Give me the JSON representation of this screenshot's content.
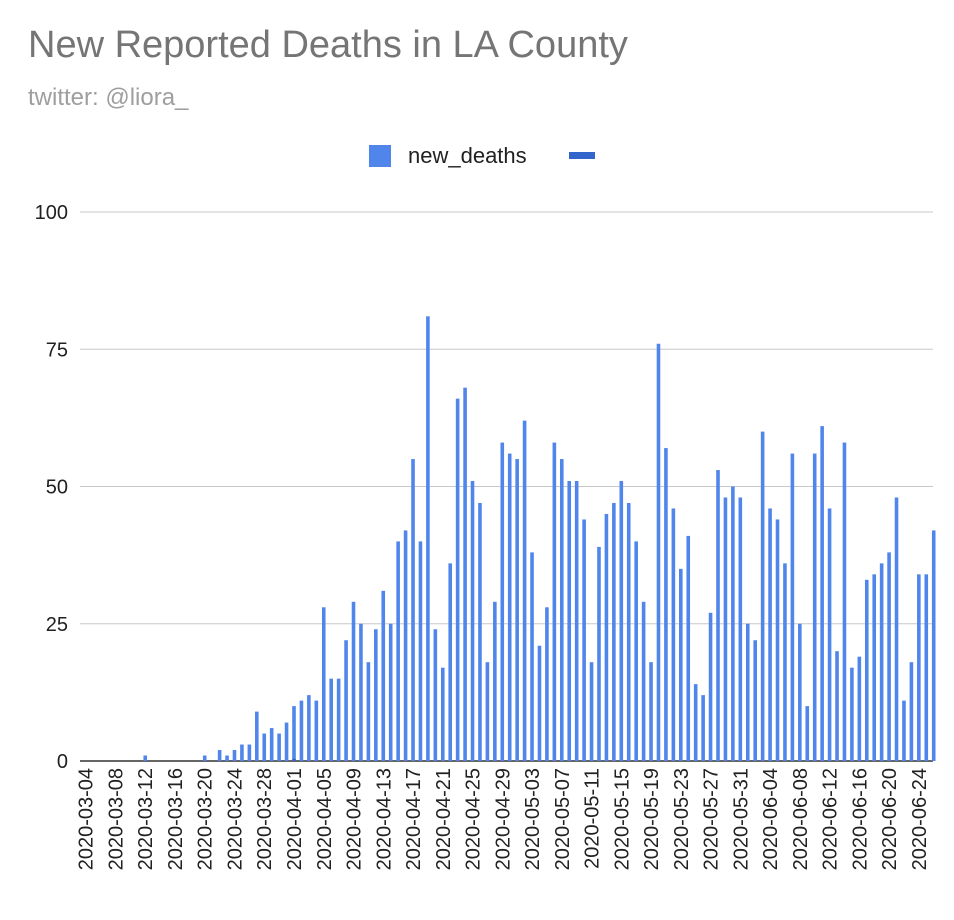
{
  "chart_data": {
    "type": "bar",
    "title": "New Reported Deaths in LA County",
    "subtitle": "twitter: @liora_",
    "legend": [
      {
        "label": "new_deaths",
        "color": "#5086ec",
        "kind": "box"
      },
      {
        "label": "",
        "color": "#3366cc",
        "kind": "line"
      }
    ],
    "legend_position": "top",
    "xlabel": "",
    "ylabel": "",
    "ylim": [
      0,
      100
    ],
    "yticks": [
      0,
      25,
      50,
      75,
      100
    ],
    "grid": true,
    "start_date": "2020-03-04",
    "x_tick_labels": [
      "2020-03-04",
      "2020-03-08",
      "2020-03-12",
      "2020-03-16",
      "2020-03-20",
      "2020-03-24",
      "2020-03-28",
      "2020-04-01",
      "2020-04-05",
      "2020-04-09",
      "2020-04-13",
      "2020-04-17",
      "2020-04-21",
      "2020-04-25",
      "2020-04-29",
      "2020-05-03",
      "2020-05-07",
      "2020-05-11",
      "2020-05-15",
      "2020-05-19",
      "2020-05-23",
      "2020-05-27",
      "2020-05-31",
      "2020-06-04",
      "2020-06-08",
      "2020-06-12",
      "2020-06-16",
      "2020-06-20",
      "2020-06-24"
    ],
    "series": [
      {
        "name": "new_deaths",
        "color": "#5086ec",
        "values": [
          0,
          0,
          0,
          0,
          0,
          0,
          0,
          0,
          1,
          0,
          0,
          0,
          0,
          0,
          0,
          0,
          1,
          0,
          2,
          1,
          2,
          3,
          3,
          9,
          5,
          6,
          5,
          7,
          10,
          11,
          12,
          11,
          28,
          15,
          15,
          22,
          29,
          25,
          18,
          24,
          31,
          25,
          40,
          42,
          55,
          40,
          81,
          24,
          17,
          36,
          66,
          68,
          51,
          47,
          18,
          29,
          58,
          56,
          55,
          62,
          38,
          21,
          28,
          58,
          55,
          51,
          51,
          44,
          18,
          39,
          45,
          47,
          51,
          47,
          40,
          29,
          18,
          76,
          57,
          46,
          35,
          41,
          14,
          12,
          27,
          53,
          48,
          50,
          48,
          25,
          22,
          60,
          46,
          44,
          36,
          56,
          25,
          10,
          56,
          61,
          46,
          20,
          58,
          17,
          19,
          33,
          34,
          36,
          38,
          48,
          11,
          18,
          34,
          34,
          42
        ]
      },
      {
        "name": "",
        "color": "#3366cc",
        "values": [
          0,
          0,
          0,
          0,
          0,
          0,
          0,
          0,
          0,
          0,
          0,
          0,
          0,
          0,
          0,
          0,
          0,
          0,
          0,
          0,
          0,
          0,
          0,
          0,
          0,
          0,
          0,
          0,
          0.4,
          0,
          0,
          0,
          0,
          0,
          0,
          0,
          0,
          0,
          0,
          0,
          0,
          0,
          0,
          0,
          0,
          0,
          0,
          0,
          0,
          0,
          0,
          0,
          0,
          0,
          0,
          0,
          0,
          0,
          0,
          0,
          0,
          0,
          0,
          0,
          0,
          0,
          0,
          0,
          0,
          0,
          0,
          0,
          0,
          0,
          0,
          0,
          0,
          0,
          0,
          0,
          0,
          0,
          0,
          0,
          0,
          0,
          0,
          0,
          0,
          0,
          0,
          0,
          0,
          0,
          0,
          0,
          0,
          0,
          0,
          0,
          0,
          0,
          0,
          0,
          0,
          0,
          0,
          0,
          0,
          0,
          0,
          0,
          0,
          0,
          0
        ]
      }
    ]
  }
}
